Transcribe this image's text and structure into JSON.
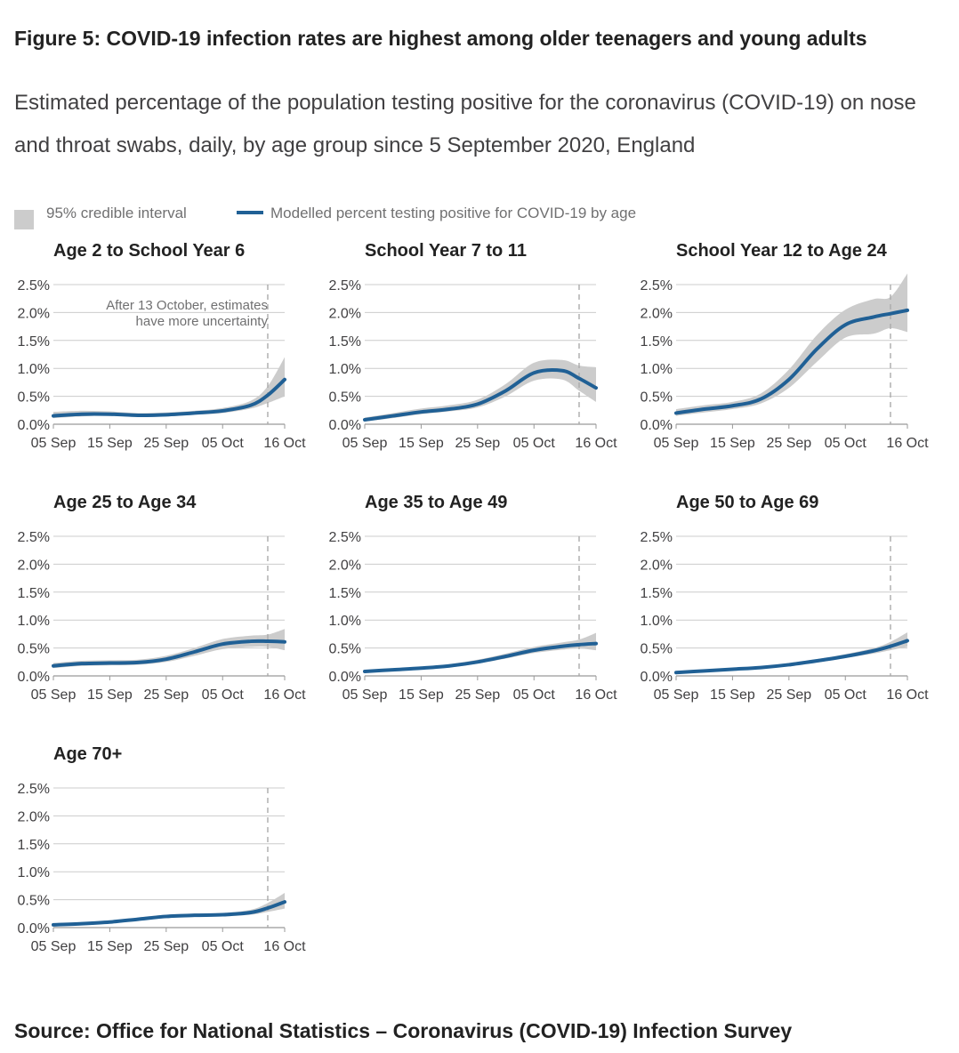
{
  "title": "Figure 5: COVID-19 infection rates are highest among older teenagers and young adults",
  "subtitle": "Estimated percentage of the population testing positive for the coronavirus (COVID-19) on nose and throat swabs, daily, by age group since 5 September 2020, England",
  "legend": {
    "interval_label": "95% credible interval",
    "line_label": "Modelled percent testing positive for COVID-19 by age"
  },
  "colors": {
    "line": "#206095",
    "band": "#cccccc",
    "grid": "#cccccc",
    "annotation_line": "#aaaaaa"
  },
  "source": "Source: Office for National Statistics – Coronavirus (COVID-19) Infection Survey",
  "chart_data": [
    {
      "type": "line",
      "title": "Age 2 to School Year 6",
      "x": [
        "05 Sep",
        "10 Sep",
        "15 Sep",
        "20 Sep",
        "25 Sep",
        "30 Sep",
        "05 Oct",
        "10 Oct",
        "13 Oct",
        "16 Oct"
      ],
      "values": [
        0.15,
        0.18,
        0.18,
        0.16,
        0.17,
        0.2,
        0.24,
        0.34,
        0.52,
        0.8
      ],
      "lower": [
        0.11,
        0.14,
        0.15,
        0.13,
        0.14,
        0.17,
        0.2,
        0.28,
        0.38,
        0.5
      ],
      "upper": [
        0.22,
        0.24,
        0.23,
        0.2,
        0.21,
        0.24,
        0.29,
        0.42,
        0.68,
        1.2
      ],
      "xticks": [
        "05 Sep",
        "15 Sep",
        "25 Sep",
        "05 Oct",
        "16 Oct"
      ],
      "yticks": [
        "0.0%",
        "0.5%",
        "1.0%",
        "1.5%",
        "2.0%",
        "2.5%"
      ],
      "ylim": [
        0,
        2.5
      ],
      "vline": "13 Oct",
      "annotation": [
        "After 13 October, estimates",
        "have more uncertainty"
      ]
    },
    {
      "type": "line",
      "title": "School Year 7 to 11",
      "x": [
        "05 Sep",
        "10 Sep",
        "15 Sep",
        "20 Sep",
        "25 Sep",
        "30 Sep",
        "05 Oct",
        "10 Oct",
        "13 Oct",
        "16 Oct"
      ],
      "values": [
        0.08,
        0.15,
        0.22,
        0.27,
        0.36,
        0.6,
        0.92,
        0.96,
        0.82,
        0.65
      ],
      "lower": [
        0.05,
        0.11,
        0.18,
        0.23,
        0.3,
        0.5,
        0.78,
        0.8,
        0.6,
        0.4
      ],
      "upper": [
        0.12,
        0.2,
        0.28,
        0.34,
        0.44,
        0.72,
        1.1,
        1.15,
        1.05,
        1.02
      ],
      "xticks": [
        "05 Sep",
        "15 Sep",
        "25 Sep",
        "05 Oct",
        "16 Oct"
      ],
      "yticks": [
        "0.0%",
        "0.5%",
        "1.0%",
        "1.5%",
        "2.0%",
        "2.5%"
      ],
      "ylim": [
        0,
        2.5
      ],
      "vline": "13 Oct"
    },
    {
      "type": "line",
      "title": "School Year 12 to Age 24",
      "x": [
        "05 Sep",
        "10 Sep",
        "15 Sep",
        "20 Sep",
        "25 Sep",
        "30 Sep",
        "05 Oct",
        "10 Oct",
        "13 Oct",
        "16 Oct"
      ],
      "values": [
        0.2,
        0.27,
        0.33,
        0.45,
        0.8,
        1.35,
        1.78,
        1.92,
        1.98,
        2.04
      ],
      "lower": [
        0.15,
        0.21,
        0.27,
        0.37,
        0.65,
        1.12,
        1.55,
        1.62,
        1.72,
        1.65
      ],
      "upper": [
        0.27,
        0.34,
        0.4,
        0.55,
        0.98,
        1.6,
        2.05,
        2.24,
        2.28,
        2.7
      ],
      "xticks": [
        "05 Sep",
        "15 Sep",
        "25 Sep",
        "05 Oct",
        "16 Oct"
      ],
      "yticks": [
        "0.0%",
        "0.5%",
        "1.0%",
        "1.5%",
        "2.0%",
        "2.5%"
      ],
      "ylim": [
        0,
        2.5
      ],
      "vline": "13 Oct"
    },
    {
      "type": "line",
      "title": "Age 25 to Age 34",
      "x": [
        "05 Sep",
        "10 Sep",
        "15 Sep",
        "20 Sep",
        "25 Sep",
        "30 Sep",
        "05 Oct",
        "10 Oct",
        "13 Oct",
        "16 Oct"
      ],
      "values": [
        0.18,
        0.22,
        0.23,
        0.24,
        0.3,
        0.43,
        0.57,
        0.62,
        0.62,
        0.61
      ],
      "lower": [
        0.14,
        0.18,
        0.19,
        0.2,
        0.25,
        0.36,
        0.48,
        0.52,
        0.52,
        0.46
      ],
      "upper": [
        0.23,
        0.27,
        0.28,
        0.29,
        0.36,
        0.5,
        0.66,
        0.72,
        0.74,
        0.84
      ],
      "xticks": [
        "05 Sep",
        "15 Sep",
        "25 Sep",
        "05 Oct",
        "16 Oct"
      ],
      "yticks": [
        "0.0%",
        "0.5%",
        "1.0%",
        "1.5%",
        "2.0%",
        "2.5%"
      ],
      "ylim": [
        0,
        2.5
      ],
      "vline": "13 Oct"
    },
    {
      "type": "line",
      "title": "Age 35 to Age 49",
      "x": [
        "05 Sep",
        "10 Sep",
        "15 Sep",
        "20 Sep",
        "25 Sep",
        "30 Sep",
        "05 Oct",
        "10 Oct",
        "13 Oct",
        "16 Oct"
      ],
      "values": [
        0.08,
        0.11,
        0.14,
        0.18,
        0.25,
        0.35,
        0.46,
        0.53,
        0.56,
        0.58
      ],
      "lower": [
        0.06,
        0.09,
        0.12,
        0.15,
        0.22,
        0.31,
        0.41,
        0.47,
        0.49,
        0.46
      ],
      "upper": [
        0.1,
        0.13,
        0.16,
        0.21,
        0.29,
        0.4,
        0.52,
        0.6,
        0.65,
        0.77
      ],
      "xticks": [
        "05 Sep",
        "15 Sep",
        "25 Sep",
        "05 Oct",
        "16 Oct"
      ],
      "yticks": [
        "0.0%",
        "0.5%",
        "1.0%",
        "1.5%",
        "2.0%",
        "2.5%"
      ],
      "ylim": [
        0,
        2.5
      ],
      "vline": "13 Oct"
    },
    {
      "type": "line",
      "title": "Age 50 to Age 69",
      "x": [
        "05 Sep",
        "10 Sep",
        "15 Sep",
        "20 Sep",
        "25 Sep",
        "30 Sep",
        "05 Oct",
        "10 Oct",
        "13 Oct",
        "16 Oct"
      ],
      "values": [
        0.06,
        0.09,
        0.12,
        0.15,
        0.2,
        0.27,
        0.35,
        0.45,
        0.53,
        0.63
      ],
      "lower": [
        0.05,
        0.08,
        0.1,
        0.13,
        0.18,
        0.24,
        0.32,
        0.4,
        0.46,
        0.52
      ],
      "upper": [
        0.08,
        0.11,
        0.14,
        0.17,
        0.23,
        0.3,
        0.39,
        0.5,
        0.61,
        0.78
      ],
      "xticks": [
        "05 Sep",
        "15 Sep",
        "25 Sep",
        "05 Oct",
        "16 Oct"
      ],
      "yticks": [
        "0.0%",
        "0.5%",
        "1.0%",
        "1.5%",
        "2.0%",
        "2.5%"
      ],
      "ylim": [
        0,
        2.5
      ],
      "vline": "13 Oct"
    },
    {
      "type": "line",
      "title": "Age 70+",
      "x": [
        "05 Sep",
        "10 Sep",
        "15 Sep",
        "20 Sep",
        "25 Sep",
        "30 Sep",
        "05 Oct",
        "10 Oct",
        "13 Oct",
        "16 Oct"
      ],
      "values": [
        0.05,
        0.07,
        0.1,
        0.15,
        0.2,
        0.22,
        0.23,
        0.27,
        0.35,
        0.46
      ],
      "lower": [
        0.04,
        0.06,
        0.08,
        0.13,
        0.17,
        0.2,
        0.2,
        0.23,
        0.28,
        0.34
      ],
      "upper": [
        0.07,
        0.09,
        0.12,
        0.18,
        0.23,
        0.25,
        0.26,
        0.32,
        0.44,
        0.62
      ],
      "xticks": [
        "05 Sep",
        "15 Sep",
        "25 Sep",
        "05 Oct",
        "16 Oct"
      ],
      "yticks": [
        "0.0%",
        "0.5%",
        "1.0%",
        "1.5%",
        "2.0%",
        "2.5%"
      ],
      "ylim": [
        0,
        2.5
      ],
      "vline": "13 Oct"
    }
  ]
}
